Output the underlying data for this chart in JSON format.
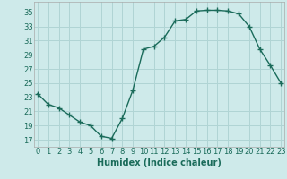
{
  "x": [
    0,
    1,
    2,
    3,
    4,
    5,
    6,
    7,
    8,
    9,
    10,
    11,
    12,
    13,
    14,
    15,
    16,
    17,
    18,
    19,
    20,
    21,
    22,
    23
  ],
  "y": [
    23.5,
    22.0,
    21.5,
    20.5,
    19.5,
    19.0,
    17.5,
    17.2,
    20.0,
    24.0,
    29.8,
    30.2,
    31.5,
    33.8,
    34.0,
    35.2,
    35.3,
    35.3,
    35.2,
    34.8,
    33.0,
    29.8,
    27.5,
    25.0
  ],
  "line_color": "#1a6b5a",
  "marker": "+",
  "markersize": 4,
  "linewidth": 1.0,
  "bg_color": "#ceeaea",
  "grid_color": "#b0d4d4",
  "xlabel": "Humidex (Indice chaleur)",
  "yticks": [
    17,
    19,
    21,
    23,
    25,
    27,
    29,
    31,
    33,
    35
  ],
  "xticks": [
    0,
    1,
    2,
    3,
    4,
    5,
    6,
    7,
    8,
    9,
    10,
    11,
    12,
    13,
    14,
    15,
    16,
    17,
    18,
    19,
    20,
    21,
    22,
    23
  ],
  "xlim": [
    -0.3,
    23.3
  ],
  "ylim": [
    16.0,
    36.5
  ],
  "xlabel_fontsize": 7,
  "tick_fontsize": 6
}
